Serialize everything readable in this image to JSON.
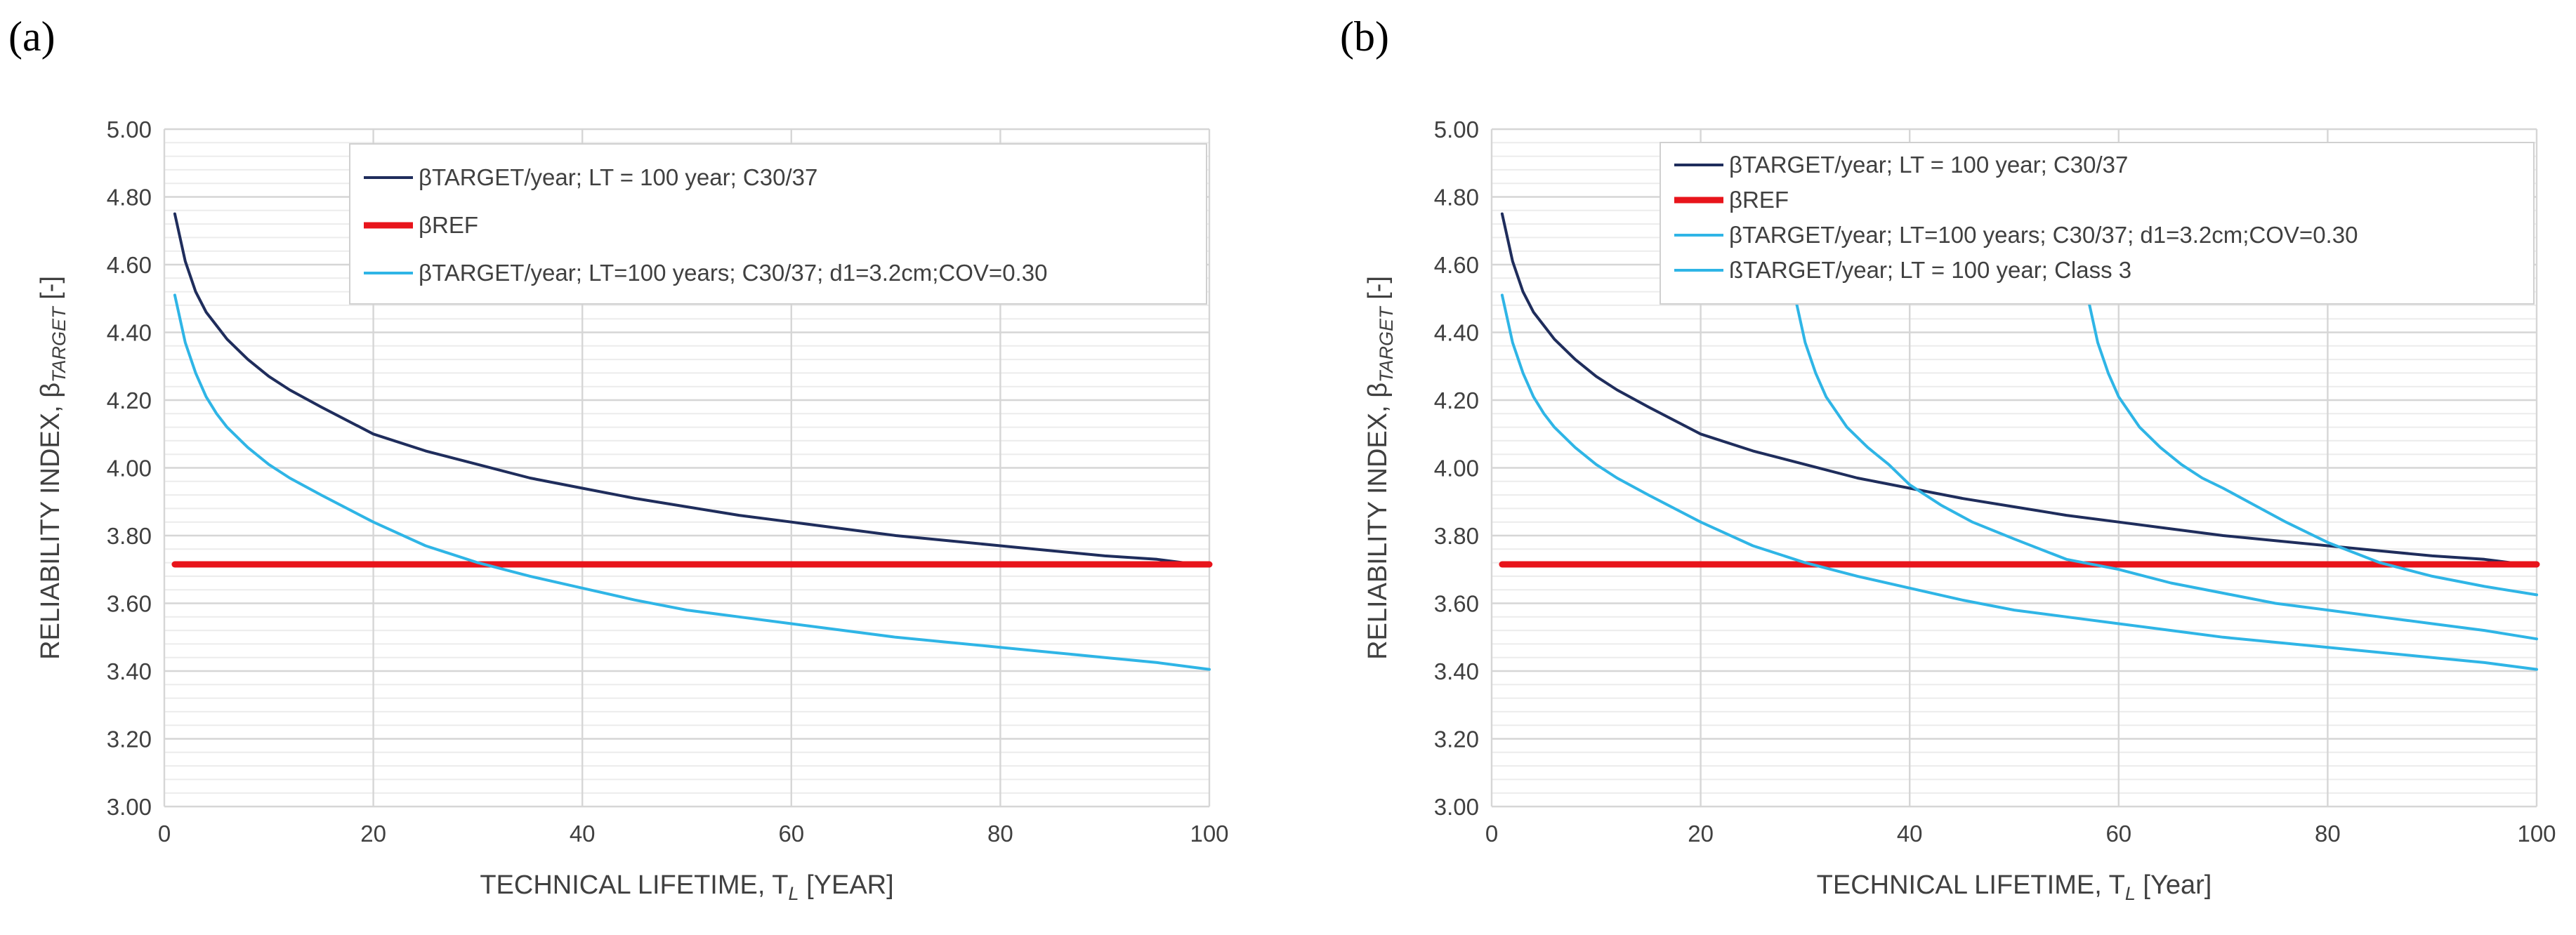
{
  "chart_data": [
    {
      "panel_label": "(a)",
      "type": "line",
      "xlabel": "TECHNICAL LIFETIME, T",
      "xlabel_sub": "L",
      "xlabel_unit": " [YEAR]",
      "ylabel": "RELIABILITY INDEX, β",
      "ylabel_sub": "TARGET",
      "ylabel_unit": " [-]",
      "xlim": [
        0,
        100
      ],
      "ylim": [
        3.0,
        5.0
      ],
      "x_ticks": [
        "0",
        "20",
        "40",
        "60",
        "80",
        "100"
      ],
      "y_ticks": [
        "3.00",
        "3.20",
        "3.40",
        "3.60",
        "3.80",
        "4.00",
        "4.20",
        "4.40",
        "4.60",
        "4.80",
        "5.00"
      ],
      "grid": true,
      "legend_position": "top-right",
      "series": [
        {
          "name": "βTARGET/year; LT = 100 year; C30/37",
          "color": "#1f2d5c",
          "x": [
            1,
            2,
            3,
            4,
            5,
            6,
            8,
            10,
            12,
            15,
            20,
            25,
            30,
            35,
            40,
            45,
            50,
            55,
            60,
            65,
            70,
            75,
            80,
            85,
            90,
            95,
            100
          ],
          "y": [
            4.75,
            4.61,
            4.52,
            4.46,
            4.42,
            4.38,
            4.32,
            4.27,
            4.23,
            4.18,
            4.1,
            4.05,
            4.01,
            3.97,
            3.94,
            3.91,
            3.885,
            3.86,
            3.84,
            3.82,
            3.8,
            3.785,
            3.77,
            3.755,
            3.74,
            3.73,
            3.71
          ]
        },
        {
          "name": "βREF",
          "color": "#e8141b",
          "x": [
            1,
            100
          ],
          "y": [
            3.715,
            3.715
          ]
        },
        {
          "name": "βTARGET/year; LT=100 years; C30/37; d1=3.2cm;COV=0.30",
          "color": "#2fb5e6",
          "x": [
            1,
            2,
            3,
            4,
            5,
            6,
            8,
            10,
            12,
            15,
            20,
            25,
            30,
            35,
            40,
            45,
            50,
            55,
            60,
            65,
            70,
            75,
            80,
            85,
            90,
            95,
            100
          ],
          "y": [
            4.51,
            4.37,
            4.28,
            4.21,
            4.16,
            4.12,
            4.06,
            4.01,
            3.97,
            3.92,
            3.84,
            3.77,
            3.72,
            3.68,
            3.645,
            3.61,
            3.58,
            3.56,
            3.54,
            3.52,
            3.5,
            3.485,
            3.47,
            3.455,
            3.44,
            3.425,
            3.405
          ]
        }
      ]
    },
    {
      "panel_label": "(b)",
      "type": "line",
      "xlabel": "TECHNICAL LIFETIME, T",
      "xlabel_sub": "L",
      "xlabel_unit": " [Year]",
      "ylabel": "RELIABILITY INDEX, β",
      "ylabel_sub": "TARGET",
      "ylabel_unit": " [-]",
      "xlim": [
        0,
        100
      ],
      "ylim": [
        3.0,
        5.0
      ],
      "x_ticks": [
        "0",
        "20",
        "40",
        "60",
        "80",
        "100"
      ],
      "y_ticks": [
        "3.00",
        "3.20",
        "3.40",
        "3.60",
        "3.80",
        "4.00",
        "4.20",
        "4.40",
        "4.60",
        "4.80",
        "5.00"
      ],
      "grid": true,
      "legend_position": "top-right",
      "series": [
        {
          "name": "βTARGET/year; LT = 100 year; C30/37",
          "color": "#1f2d5c",
          "x": [
            1,
            2,
            3,
            4,
            5,
            6,
            8,
            10,
            12,
            15,
            20,
            25,
            30,
            35,
            40,
            45,
            50,
            55,
            60,
            65,
            70,
            75,
            80,
            85,
            90,
            95,
            100
          ],
          "y": [
            4.75,
            4.61,
            4.52,
            4.46,
            4.42,
            4.38,
            4.32,
            4.27,
            4.23,
            4.18,
            4.1,
            4.05,
            4.01,
            3.97,
            3.94,
            3.91,
            3.885,
            3.86,
            3.84,
            3.82,
            3.8,
            3.785,
            3.77,
            3.755,
            3.74,
            3.73,
            3.71
          ]
        },
        {
          "name": "βREF",
          "color": "#e8141b",
          "x": [
            1,
            100
          ],
          "y": [
            3.715,
            3.715
          ]
        },
        {
          "name": "βTARGET/year; LT=100 years; C30/37; d1=3.2cm;COV=0.30",
          "color": "#2fb5e6",
          "x": [
            1,
            2,
            3,
            4,
            5,
            6,
            8,
            10,
            12,
            15,
            20,
            25,
            30,
            35,
            40,
            45,
            50,
            55,
            60,
            65,
            70,
            75,
            80,
            85,
            90,
            95,
            100
          ],
          "y": [
            4.51,
            4.37,
            4.28,
            4.21,
            4.16,
            4.12,
            4.06,
            4.01,
            3.97,
            3.92,
            3.84,
            3.77,
            3.72,
            3.68,
            3.645,
            3.61,
            3.58,
            3.56,
            3.54,
            3.52,
            3.5,
            3.485,
            3.47,
            3.455,
            3.44,
            3.425,
            3.405
          ]
        },
        {
          "name": "ßTARGET/year; LT = 100 year; Class 3",
          "color": "#2fb5e6",
          "x": [
            29,
            30,
            31,
            32,
            34,
            36,
            38,
            40,
            43,
            46,
            50,
            55,
            60,
            65,
            70,
            75,
            80,
            85,
            90,
            95,
            100
          ],
          "y": [
            4.51,
            4.37,
            4.28,
            4.21,
            4.12,
            4.06,
            4.01,
            3.95,
            3.89,
            3.84,
            3.79,
            3.73,
            3.7,
            3.66,
            3.63,
            3.6,
            3.58,
            3.56,
            3.54,
            3.52,
            3.495
          ]
        },
        {
          "name": "",
          "color": "#2fb5e6",
          "x": [
            57,
            58,
            59,
            60,
            62,
            64,
            66,
            68,
            70,
            73,
            76,
            80,
            85,
            90,
            95,
            100
          ],
          "y": [
            4.51,
            4.37,
            4.28,
            4.21,
            4.12,
            4.06,
            4.01,
            3.97,
            3.94,
            3.89,
            3.84,
            3.78,
            3.72,
            3.68,
            3.65,
            3.625
          ]
        }
      ]
    }
  ]
}
